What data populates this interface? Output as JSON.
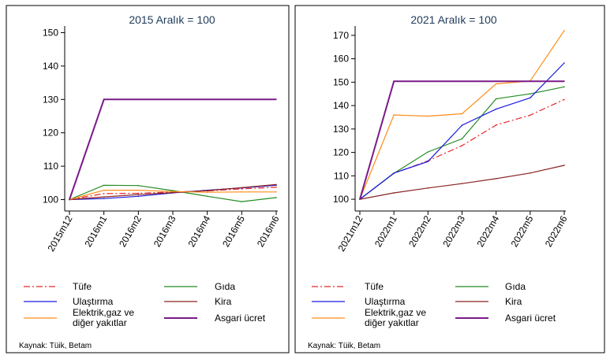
{
  "chart_data": [
    {
      "type": "line",
      "title": "2015 Aralık = 100",
      "categories": [
        "2015m12",
        "2016m1",
        "2016m2",
        "2016m3",
        "2016m4",
        "2016m5",
        "2016m6"
      ],
      "ylim": [
        98,
        152
      ],
      "yticks": [
        100,
        110,
        120,
        130,
        140,
        150
      ],
      "grid": false,
      "legend_placement": "bottom",
      "series": [
        {
          "name": "Tüfe",
          "color": "#e8262b",
          "dash": "dashdot",
          "values": [
            100,
            101.8,
            101.9,
            102.3,
            102.6,
            103.2,
            103.7
          ]
        },
        {
          "name": "Gıda",
          "color": "#228b22",
          "dash": "solid",
          "values": [
            100,
            104.3,
            104.2,
            102.7,
            101.0,
            99.4,
            100.6
          ]
        },
        {
          "name": "Ulaştırma",
          "color": "#1a1adf",
          "dash": "solid",
          "values": [
            100,
            100.3,
            101.0,
            102.0,
            102.8,
            103.5,
            104.3
          ]
        },
        {
          "name": "Kira",
          "color": "#8b2323",
          "dash": "solid",
          "values": [
            100,
            100.8,
            101.5,
            102.1,
            102.7,
            103.6,
            104.5
          ]
        },
        {
          "name": "Elektrik,gaz ve diğer yakıtlar",
          "color": "#ff8c1a",
          "dash": "solid",
          "values": [
            100,
            102.8,
            102.8,
            102.4,
            102.2,
            102.3,
            102.3
          ]
        },
        {
          "name": "Asgari ücret",
          "color": "#7a1a8a",
          "dash": "solid",
          "values": [
            100,
            130,
            130,
            130,
            130,
            130,
            130
          ]
        }
      ],
      "source": "Kaynak: Tüik, Betam"
    },
    {
      "type": "line",
      "title": "2021 Aralık = 100",
      "categories": [
        "2021m12",
        "2022m1",
        "2022m2",
        "2022m3",
        "2022m4",
        "2022m5",
        "2022m6"
      ],
      "ylim": [
        97,
        174
      ],
      "yticks": [
        100,
        110,
        120,
        130,
        140,
        150,
        160,
        170
      ],
      "grid": false,
      "legend_placement": "bottom",
      "series": [
        {
          "name": "Tüfe",
          "color": "#e8262b",
          "dash": "dashdot",
          "values": [
            100,
            111.1,
            116.4,
            122.9,
            131.7,
            135.9,
            142.6
          ]
        },
        {
          "name": "Gıda",
          "color": "#228b22",
          "dash": "solid",
          "values": [
            100,
            111.1,
            120.2,
            125.8,
            142.9,
            145.0,
            148.0
          ]
        },
        {
          "name": "Ulaştırma",
          "color": "#1a1adf",
          "dash": "solid",
          "values": [
            100,
            111.2,
            116.1,
            131.6,
            138.5,
            143.3,
            158.2
          ]
        },
        {
          "name": "Kira",
          "color": "#8b2323",
          "dash": "solid",
          "values": [
            100,
            102.7,
            104.8,
            106.7,
            108.8,
            111.2,
            114.5
          ]
        },
        {
          "name": "Elektrik,gaz ve diğer yakıtlar",
          "color": "#ff8c1a",
          "dash": "solid",
          "values": [
            100,
            136.0,
            135.5,
            136.5,
            149.3,
            150.5,
            172.0
          ]
        },
        {
          "name": "Asgari ücret",
          "color": "#7a1a8a",
          "dash": "solid",
          "values": [
            100,
            150.4,
            150.4,
            150.4,
            150.4,
            150.4,
            150.4
          ]
        }
      ],
      "source": "Kaynak: Tüik, Betam"
    }
  ]
}
